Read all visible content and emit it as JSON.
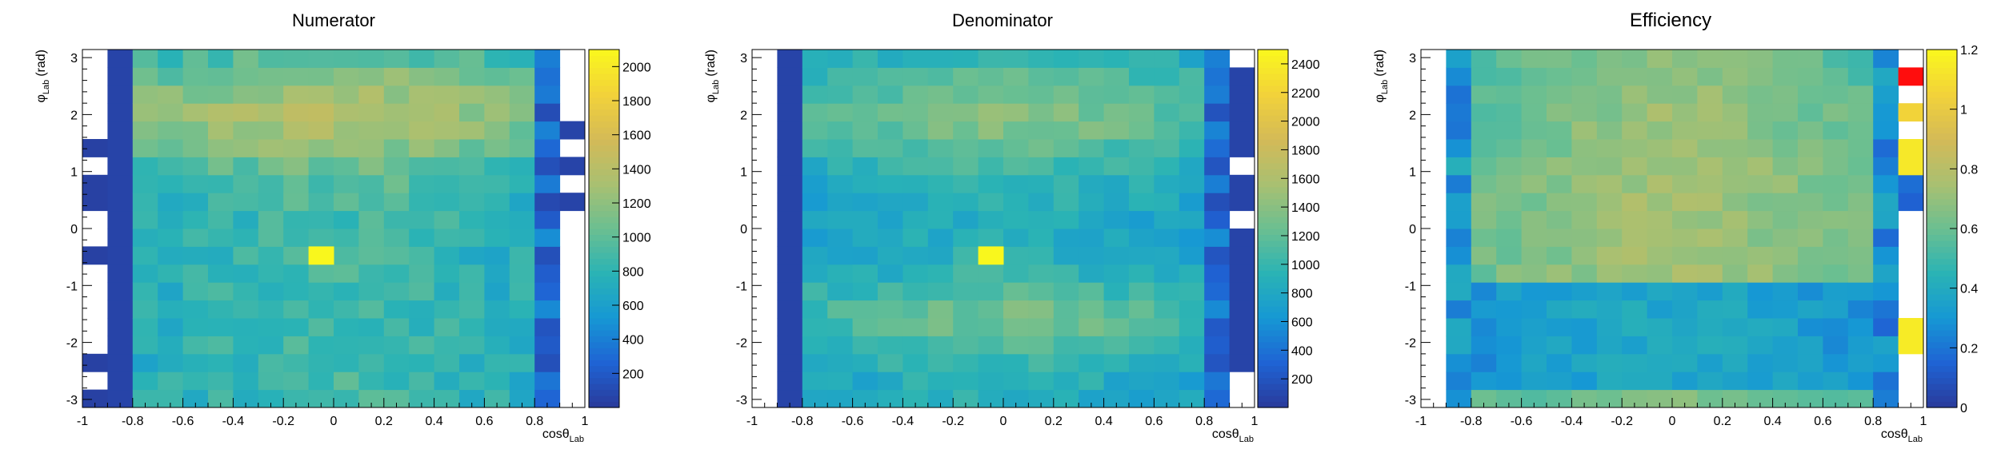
{
  "chart_data": [
    {
      "type": "heatmap",
      "title": "Numerator",
      "xlabel": "cosθ",
      "xlabel_sub": "Lab",
      "ylabel": "φ",
      "ylabel_sub": "Lab",
      "ylabel_unit": "(rad)",
      "xlim": [
        -1,
        1
      ],
      "ylim": [
        -3.14159,
        3.14159
      ],
      "nx": 20,
      "ny": 20,
      "x_ticks": [
        "-1",
        "-0.8",
        "-0.6",
        "-0.4",
        "-0.2",
        "0",
        "0.2",
        "0.4",
        "0.6",
        "0.8",
        "1"
      ],
      "y_ticks": [
        "-3",
        "-2",
        "-1",
        "0",
        "1",
        "2",
        "3"
      ],
      "z_range": [
        0,
        2100
      ],
      "colorbar_ticks": [
        "200",
        "400",
        "600",
        "800",
        "1000",
        "1200",
        "1400",
        "1600",
        "1800",
        "2000"
      ],
      "grid": false,
      "hot_cell": {
        "x": -0.05,
        "y": -0.47,
        "value": 2100
      }
    },
    {
      "type": "heatmap",
      "title": "Denominator",
      "xlabel": "cosθ",
      "xlabel_sub": "Lab",
      "ylabel": "φ",
      "ylabel_sub": "Lab",
      "ylabel_unit": "(rad)",
      "xlim": [
        -1,
        1
      ],
      "ylim": [
        -3.14159,
        3.14159
      ],
      "nx": 20,
      "ny": 20,
      "x_ticks": [
        "-1",
        "-0.8",
        "-0.6",
        "-0.4",
        "-0.2",
        "0",
        "0.2",
        "0.4",
        "0.6",
        "0.8",
        "1"
      ],
      "y_ticks": [
        "-3",
        "-2",
        "-1",
        "0",
        "1",
        "2",
        "3"
      ],
      "z_range": [
        0,
        2500
      ],
      "colorbar_ticks": [
        "200",
        "400",
        "600",
        "800",
        "1000",
        "1200",
        "1400",
        "1600",
        "1800",
        "2000",
        "2200",
        "2400"
      ],
      "grid": false,
      "hot_cell": {
        "x": -0.05,
        "y": -0.47,
        "value": 2500
      }
    },
    {
      "type": "heatmap",
      "title": "Efficiency",
      "xlabel": "cosθ",
      "xlabel_sub": "Lab",
      "ylabel": "φ",
      "ylabel_sub": "Lab",
      "ylabel_unit": "(rad)",
      "xlim": [
        -1,
        1
      ],
      "ylim": [
        -3.14159,
        3.14159
      ],
      "nx": 20,
      "ny": 20,
      "x_ticks": [
        "-1",
        "-0.8",
        "-0.6",
        "-0.4",
        "-0.2",
        "0",
        "0.2",
        "0.4",
        "0.6",
        "0.8",
        "1"
      ],
      "y_ticks": [
        "-3",
        "-2",
        "-1",
        "0",
        "1",
        "2",
        "3"
      ],
      "z_range": [
        0,
        1.2
      ],
      "colorbar_ticks": [
        "0",
        "0.2",
        "0.4",
        "0.6",
        "0.8",
        "1",
        "1.2"
      ],
      "grid": false
    }
  ],
  "palette": [
    "#2a3a9a",
    "#1f63d4",
    "#1698d4",
    "#2ab3b5",
    "#6bbf91",
    "#a9c071",
    "#d4ba57",
    "#f2d23a",
    "#f9f71d"
  ],
  "overflow_color": "#ff0d0d"
}
